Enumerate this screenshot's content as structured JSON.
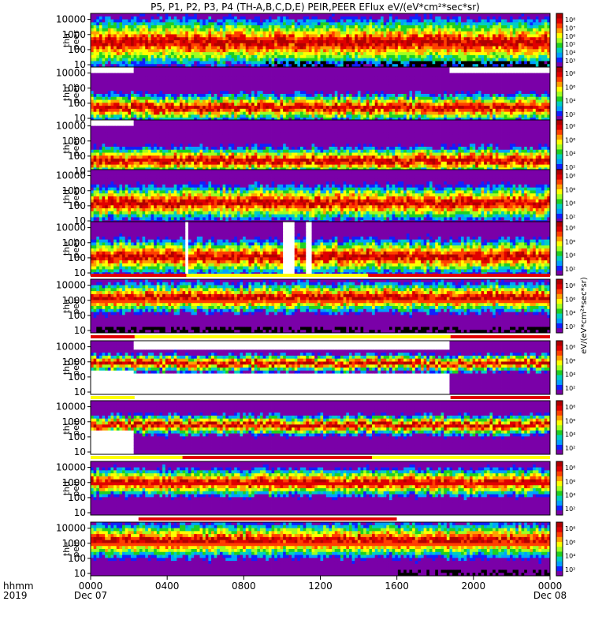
{
  "title": "P5, P1, P2, P3, P4 (TH-A,B,C,D,E) PEIR,PEER EFlux eV/(eV*cm²*sec*sr)",
  "colors": {
    "scale": [
      "#7a00a8",
      "#1020ff",
      "#00a0ff",
      "#00d0c0",
      "#20d020",
      "#a0ff20",
      "#ffff00",
      "#ffa000",
      "#ff4000",
      "#e00000",
      "#b00000"
    ],
    "data_gap": "#ffffff",
    "no_counts": "#000000",
    "status_red": "#e00000",
    "status_yellow": "#ffff00"
  },
  "chart_data": {
    "type": "heatmap",
    "title": "P5, P1, P2, P3, P4 (TH-A,B,C,D,E) PEIR,PEER EFlux eV/(eV*cm²*sec*sr)",
    "x_axis": {
      "corner_labels": [
        "hhmm",
        "2019"
      ],
      "ticks": [
        "0000",
        "0400",
        "0800",
        "1200",
        "1600",
        "2000",
        "0000"
      ],
      "tick_hours": [
        0,
        4,
        8,
        12,
        16,
        20,
        24
      ],
      "date_labels": [
        "Dec 07",
        "Dec 08"
      ],
      "date_label_hours": [
        0,
        24
      ],
      "range_hours": [
        0,
        24
      ]
    },
    "y_axis": {
      "scale": "log",
      "range_eV": [
        7,
        25000
      ],
      "ticks": [
        "10",
        "100",
        "1000",
        "10000"
      ]
    },
    "colorbar_unit": "eV/(eV*cm²*sec*sr)",
    "colorbar_ticks": [
      [
        "10³",
        "10⁴",
        "10⁵",
        "10⁶",
        "10⁷",
        "10⁸"
      ],
      [
        "10²",
        "10⁴",
        "10⁶",
        "10⁸"
      ],
      [
        "10²",
        "10⁴",
        "10⁶",
        "10⁸"
      ],
      [
        "10²",
        "10⁴",
        "10⁶",
        "10⁸"
      ],
      [
        "10²",
        "10⁴",
        "10⁶",
        "10⁸"
      ],
      [
        "10²",
        "10⁴",
        "10⁶",
        "10⁸"
      ],
      [
        "10²",
        "10⁴",
        "10⁶",
        "10⁸"
      ],
      [
        "10²",
        "10⁴",
        "10⁶",
        "10⁸"
      ],
      [
        "10²",
        "10⁴",
        "10⁶",
        "10⁸"
      ],
      [
        "10²",
        "10⁴",
        "10⁶",
        "10⁸"
      ]
    ],
    "panels": [
      {
        "probe": "tha",
        "species": "peer",
        "peak_eV": 300,
        "spread": 0.95,
        "black_bottom_from_hour": 9,
        "gaps": []
      },
      {
        "probe": "thb",
        "species": "peer",
        "peak_eV": 50,
        "spread": 0.55,
        "black_bottom_from_hour": null,
        "gaps": [
          [
            0,
            2.3,
            "top"
          ],
          [
            18.8,
            24,
            "top"
          ]
        ]
      },
      {
        "probe": "thc",
        "species": "peer",
        "peak_eV": 50,
        "spread": 0.55,
        "black_bottom_from_hour": null,
        "gaps": [
          [
            0,
            2.3,
            "top"
          ]
        ]
      },
      {
        "probe": "thd",
        "species": "peer",
        "peak_eV": 150,
        "spread": 0.7,
        "black_bottom_from_hour": null,
        "gaps": []
      },
      {
        "probe": "the",
        "species": "peer",
        "peak_eV": 120,
        "spread": 0.7,
        "black_bottom_from_hour": null,
        "gaps": [
          [
            5,
            5.15,
            "full"
          ],
          [
            10,
            10.7,
            "full"
          ],
          [
            11.3,
            11.6,
            "full"
          ]
        ]
      },
      {
        "probe": "tha",
        "species": "peir",
        "peak_eV": 1500,
        "spread": 0.6,
        "black_bottom_from_hour": 0,
        "gaps": []
      },
      {
        "probe": "thb",
        "species": "peir",
        "peak_eV": 800,
        "spread": 0.35,
        "black_bottom_from_hour": null,
        "gaps": [
          [
            0,
            2.3,
            "low"
          ],
          [
            2.3,
            18.8,
            "edges"
          ]
        ]
      },
      {
        "probe": "thc",
        "species": "peir",
        "peak_eV": 600,
        "spread": 0.4,
        "black_bottom_from_hour": null,
        "gaps": [
          [
            0,
            2.3,
            "low"
          ]
        ]
      },
      {
        "probe": "thd",
        "species": "peir",
        "peak_eV": 1000,
        "spread": 0.55,
        "black_bottom_from_hour": null,
        "gaps": []
      },
      {
        "probe": "the",
        "species": "peir",
        "peak_eV": 1500,
        "spread": 0.7,
        "black_bottom_from_hour": 16,
        "gaps": []
      }
    ],
    "status_bars": [
      {
        "after_panel": 5,
        "segments": [
          [
            0,
            5,
            "red"
          ],
          [
            5,
            14.5,
            "yellow"
          ],
          [
            14.5,
            24,
            "red"
          ]
        ]
      },
      {
        "after_panel": 6,
        "segments": [
          [
            0,
            2.3,
            "red"
          ],
          [
            2.3,
            18.8,
            "yellow"
          ],
          [
            18.8,
            24,
            "red"
          ]
        ]
      },
      {
        "after_panel": 7,
        "segments": [
          [
            0,
            2.3,
            "yellow"
          ],
          [
            2.3,
            18.8,
            "white"
          ],
          [
            18.8,
            24,
            "red"
          ]
        ]
      },
      {
        "after_panel": 8,
        "segments": [
          [
            0,
            4.8,
            "yellow"
          ],
          [
            4.8,
            14.7,
            "red"
          ],
          [
            14.7,
            24,
            "yellow"
          ]
        ]
      },
      {
        "after_panel": 9,
        "segments": [
          [
            0,
            2.5,
            "white"
          ],
          [
            2.5,
            16,
            "red"
          ],
          [
            16,
            24,
            "white"
          ]
        ]
      }
    ]
  }
}
